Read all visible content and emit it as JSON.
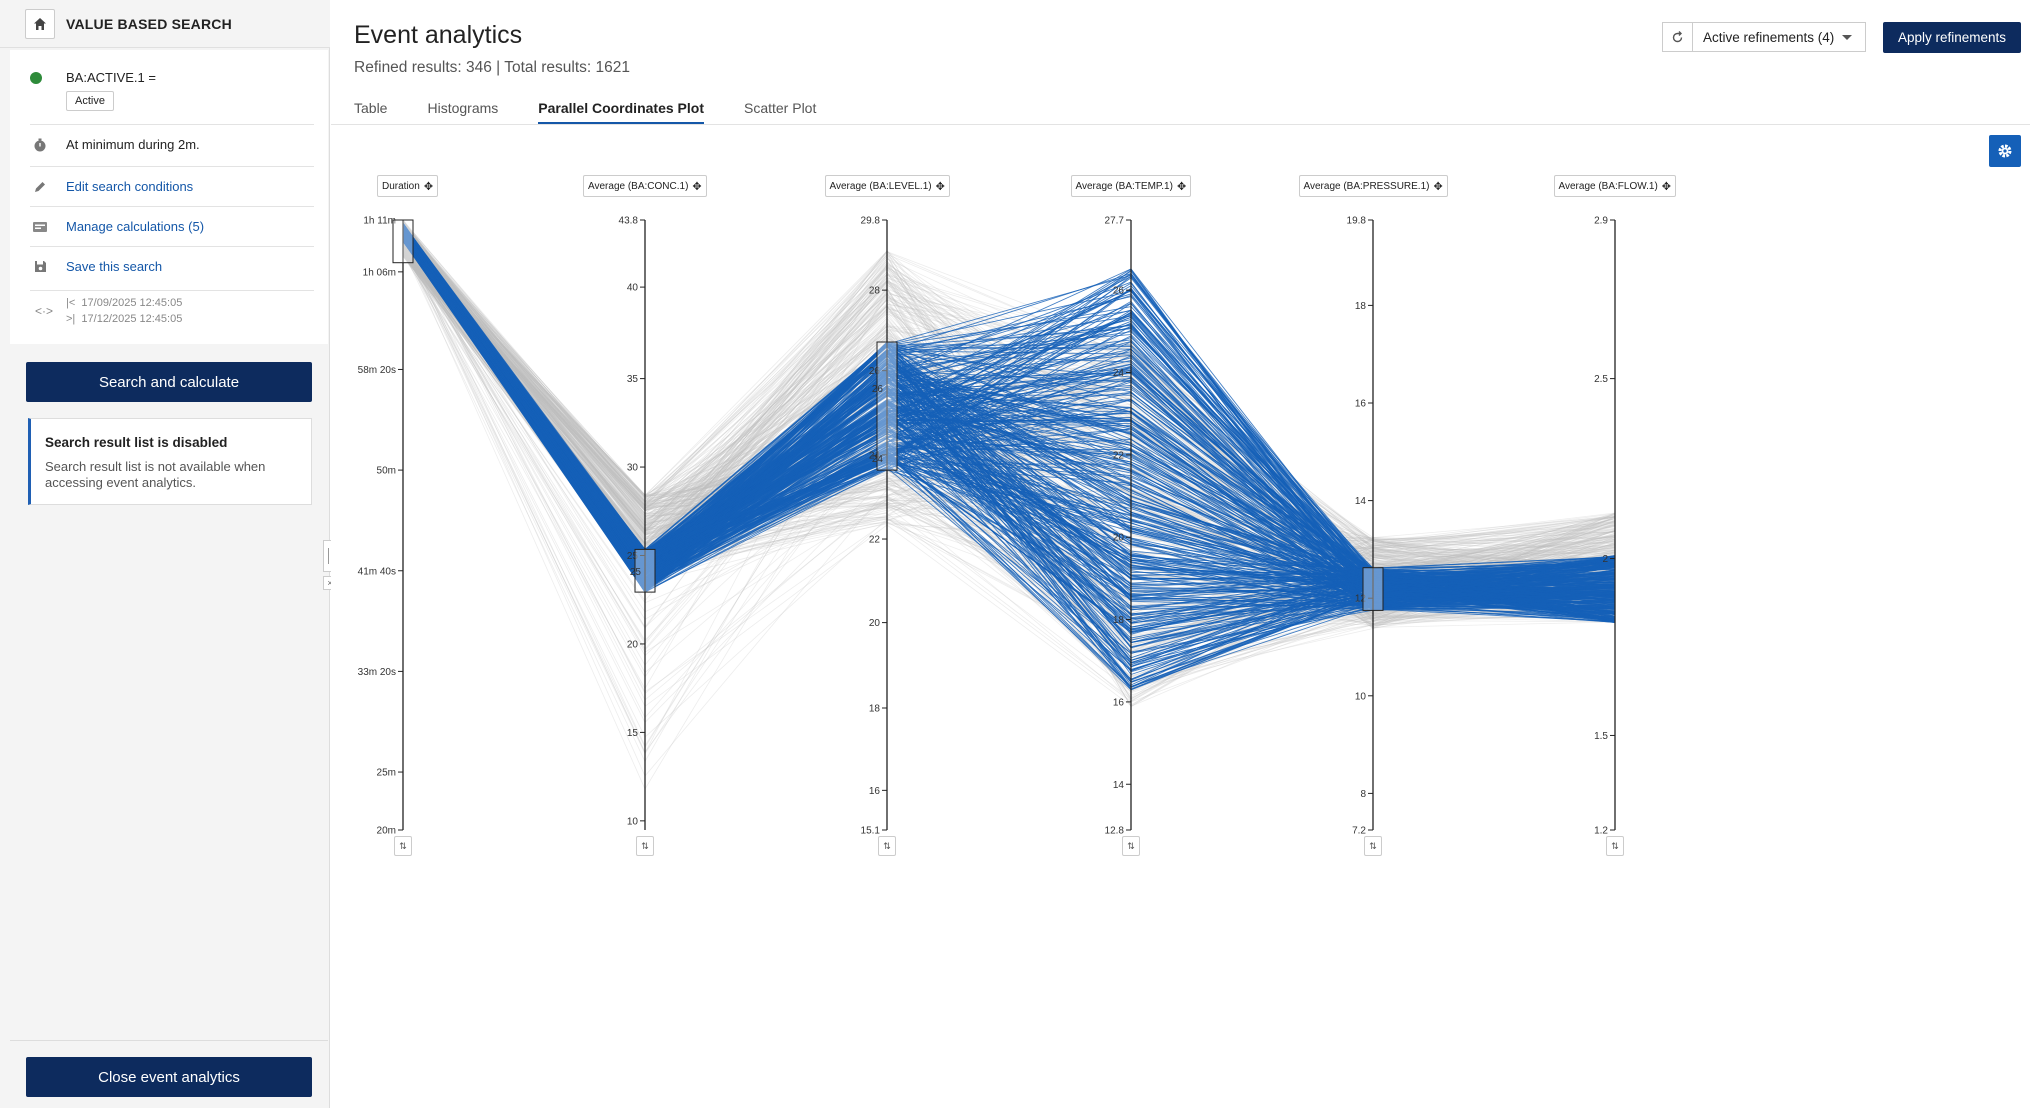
{
  "sidebar": {
    "title": "VALUE BASED SEARCH",
    "condition": {
      "tag": "BA:ACTIVE.1 =",
      "value": "Active"
    },
    "duration_rule": "At minimum during 2m.",
    "edit_label": "Edit search conditions",
    "calc_label": "Manage calculations (5)",
    "save_label": "Save this search",
    "start_date": "17/09/2025 12:45:05",
    "end_date": "17/12/2025 12:45:05",
    "search_button": "Search and calculate",
    "notice_title": "Search result list is disabled",
    "notice_body": "Search result list is not available when accessing event analytics.",
    "close_button": "Close event analytics"
  },
  "header": {
    "title": "Event analytics",
    "results": "Refined results: 346 | Total results: 1621",
    "refinements_label": "Active refinements (4)",
    "apply_label": "Apply refinements"
  },
  "tabs": [
    {
      "label": "Table",
      "active": false
    },
    {
      "label": "Histograms",
      "active": false
    },
    {
      "label": "Parallel Coordinates Plot",
      "active": true
    },
    {
      "label": "Scatter Plot",
      "active": false
    }
  ],
  "colors": {
    "accent": "#1560b8",
    "primary_button": "#0d2b5e",
    "line_selected": "#1560b8",
    "line_background": "#bdbdbd",
    "status_green": "#2e8b3a"
  },
  "chart_data": {
    "type": "parallel-coordinates",
    "refined_count": 346,
    "total_count": 1621,
    "axes": [
      {
        "name": "Duration",
        "ticks": [
          "1h 11m",
          "1h 06m",
          "58m 20s",
          "50m",
          "41m 40s",
          "33m 20s",
          "25m",
          "20m"
        ],
        "range": [
          "20m",
          "1h 11m"
        ]
      },
      {
        "name": "Average (BA:CONC.1)",
        "ticks": [
          "43.8",
          "40",
          "35",
          "30",
          "25",
          "20",
          "15",
          "10"
        ],
        "range": [
          10,
          43.8
        ],
        "brush_label": "25"
      },
      {
        "name": "Average (BA:LEVEL.1)",
        "ticks": [
          "29.8",
          "28",
          "26",
          "24",
          "22",
          "20",
          "18",
          "16",
          "15.1"
        ],
        "range": [
          15.1,
          29.8
        ],
        "brush_labels": [
          "26",
          "24"
        ]
      },
      {
        "name": "Average (BA:TEMP.1)",
        "ticks": [
          "27.7",
          "26",
          "24",
          "22",
          "20",
          "18",
          "16",
          "14",
          "12.8"
        ],
        "range": [
          12.8,
          27.7
        ]
      },
      {
        "name": "Average (BA:PRESSURE.1)",
        "ticks": [
          "19.8",
          "18",
          "16",
          "14",
          "12",
          "10",
          "8",
          "7.2"
        ],
        "range": [
          7.2,
          19.8
        ]
      },
      {
        "name": "Average (BA:FLOW.1)",
        "ticks": [
          "2.9",
          "2.5",
          "2",
          "1.5",
          "1.2"
        ],
        "range": [
          1.2,
          2.9
        ],
        "brush_label": "2"
      }
    ]
  }
}
